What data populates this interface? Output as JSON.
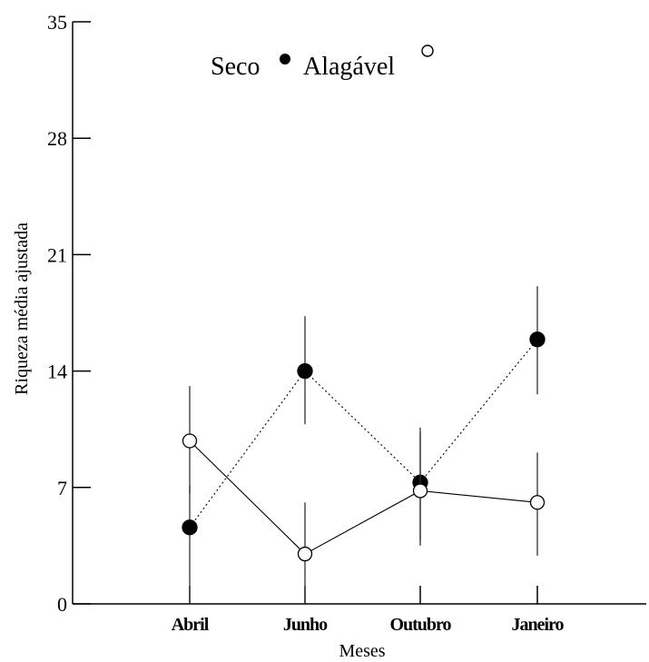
{
  "chart_data": {
    "type": "line",
    "categories": [
      "Abril",
      "Junho",
      "Outubro",
      "Janeiro"
    ],
    "xlabel": "Meses",
    "ylabel": "Riqueza média ajustada",
    "ylim": [
      0,
      35
    ],
    "yticks": [
      0,
      7,
      14,
      21,
      28,
      35
    ],
    "grid": false,
    "legend_position": "top",
    "series": [
      {
        "name": "Seco",
        "marker": "filled-circle",
        "line_style": "dotted",
        "color": "#000000",
        "values": [
          4.6,
          14.0,
          7.3,
          15.9
        ],
        "error_low": [
          0.0,
          10.8,
          3.8,
          12.6
        ],
        "error_high": [
          7.1,
          17.3,
          10.3,
          19.1
        ]
      },
      {
        "name": "Alagável",
        "marker": "open-circle",
        "line_style": "solid",
        "color": "#000000",
        "values": [
          9.8,
          3.0,
          6.8,
          6.1
        ],
        "error_low": [
          6.6,
          0.0,
          3.5,
          2.9
        ],
        "error_high": [
          13.1,
          6.1,
          10.6,
          9.1
        ]
      }
    ]
  }
}
